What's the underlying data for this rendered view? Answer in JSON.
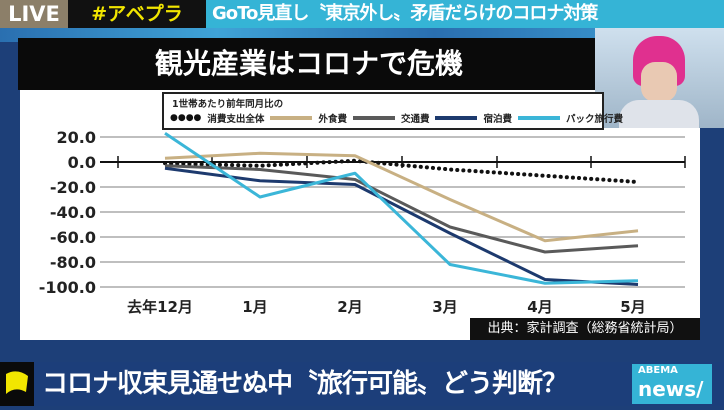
{
  "header": {
    "live": "LIVE",
    "hashtag": "#アベプラ",
    "headline": "GoTo見直し〝東京外し〟矛盾だらけのコロナ対策"
  },
  "panel_title": "観光産業はコロナで危機",
  "legend": {
    "caption": "1世帯あたり前年同月比の"
  },
  "source": "出典：家計調査（総務省統計局）",
  "bottom": {
    "caption": "コロナ収束見通せぬ中〝旅行可能〟どう判断？",
    "logo_top": "ABEMA",
    "logo_bottom": "news/"
  },
  "chart_data": {
    "type": "line",
    "categories": [
      "去年12月",
      "1月",
      "2月",
      "3月",
      "4月",
      "5月"
    ],
    "yticks": [
      "20.0",
      "0.0",
      "-20.0",
      "-40.0",
      "-60.0",
      "-80.0",
      "-100.0"
    ],
    "ylim": [
      -100,
      20
    ],
    "grid": true,
    "legend_position": "top",
    "series": [
      {
        "name": "消費支出全体",
        "color": "#111111",
        "style": "dotted",
        "values": [
          -1,
          -3,
          1,
          -6,
          -11,
          -16
        ]
      },
      {
        "name": "外食費",
        "color": "#c8b083",
        "style": "solid",
        "values": [
          3,
          7,
          5,
          -30,
          -63,
          -55
        ]
      },
      {
        "name": "交通費",
        "color": "#5a5a5a",
        "style": "solid",
        "values": [
          -3,
          -6,
          -14,
          -52,
          -72,
          -67
        ]
      },
      {
        "name": "宿泊費",
        "color": "#1d3a6e",
        "style": "solid",
        "values": [
          -5,
          -15,
          -18,
          -57,
          -94,
          -98
        ]
      },
      {
        "name": "パック旅行費",
        "color": "#3bb6d8",
        "style": "solid",
        "values": [
          23,
          -28,
          -9,
          -82,
          -97,
          -95
        ]
      }
    ]
  }
}
